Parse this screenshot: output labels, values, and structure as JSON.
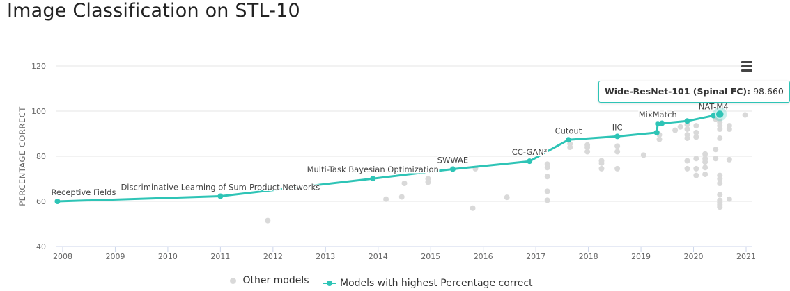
{
  "page": {
    "title": "Image Classification on STL-10"
  },
  "chart_data": {
    "type": "scatter",
    "ylabel": "PERCENTAGE CORRECT",
    "xlabel": "",
    "xlim": [
      2007.8,
      2021.1
    ],
    "ylim": [
      40,
      120
    ],
    "x_ticks": [
      "2008",
      "2009",
      "2010",
      "2011",
      "2012",
      "2013",
      "2014",
      "2015",
      "2016",
      "2017",
      "2018",
      "2019",
      "2020",
      "2021"
    ],
    "y_ticks": [
      40,
      60,
      80,
      100,
      120
    ],
    "grid": "horizontal",
    "legend_placement": "bottom-center",
    "series": [
      {
        "name": "Other models",
        "color": "#d9d9d9",
        "points": [
          [
            2011.9,
            51.5
          ],
          [
            2014.15,
            61
          ],
          [
            2014.45,
            62
          ],
          [
            2014.5,
            68
          ],
          [
            2014.95,
            68.5
          ],
          [
            2014.95,
            70
          ],
          [
            2015.8,
            57
          ],
          [
            2015.85,
            74.5
          ],
          [
            2016.45,
            61.8
          ],
          [
            2017.22,
            60.5
          ],
          [
            2017.22,
            64.5
          ],
          [
            2017.22,
            71
          ],
          [
            2017.22,
            75
          ],
          [
            2017.22,
            76.5
          ],
          [
            2017.65,
            84
          ],
          [
            2017.65,
            85.5
          ],
          [
            2017.98,
            82
          ],
          [
            2017.98,
            84
          ],
          [
            2017.98,
            85
          ],
          [
            2018.25,
            74.5
          ],
          [
            2018.25,
            77
          ],
          [
            2018.25,
            78
          ],
          [
            2018.55,
            74.5
          ],
          [
            2018.55,
            82
          ],
          [
            2018.55,
            84.5
          ],
          [
            2019.05,
            80.5
          ],
          [
            2019.35,
            87.5
          ],
          [
            2019.35,
            89.5
          ],
          [
            2019.65,
            91.5
          ],
          [
            2019.75,
            93
          ],
          [
            2019.88,
            74.5
          ],
          [
            2019.88,
            78
          ],
          [
            2019.88,
            88
          ],
          [
            2019.88,
            89.5
          ],
          [
            2019.88,
            92
          ],
          [
            2019.88,
            94
          ],
          [
            2020.05,
            71.5
          ],
          [
            2020.05,
            74.5
          ],
          [
            2020.05,
            79
          ],
          [
            2020.05,
            88.5
          ],
          [
            2020.05,
            90.5
          ],
          [
            2020.05,
            93.5
          ],
          [
            2020.22,
            72
          ],
          [
            2020.22,
            75
          ],
          [
            2020.22,
            77.5
          ],
          [
            2020.22,
            79
          ],
          [
            2020.22,
            81
          ],
          [
            2020.42,
            79
          ],
          [
            2020.42,
            83
          ],
          [
            2020.42,
            96.5
          ],
          [
            2020.5,
            57.5
          ],
          [
            2020.5,
            58.5
          ],
          [
            2020.5,
            59.5
          ],
          [
            2020.5,
            60.5
          ],
          [
            2020.5,
            63
          ],
          [
            2020.5,
            68
          ],
          [
            2020.5,
            70
          ],
          [
            2020.5,
            71.5
          ],
          [
            2020.5,
            88
          ],
          [
            2020.5,
            92
          ],
          [
            2020.5,
            93.5
          ],
          [
            2020.5,
            95
          ],
          [
            2020.5,
            97
          ],
          [
            2020.5,
            98
          ],
          [
            2020.68,
            61
          ],
          [
            2020.68,
            78.5
          ],
          [
            2020.68,
            92
          ],
          [
            2020.68,
            93.5
          ],
          [
            2020.98,
            98.3
          ]
        ]
      },
      {
        "name": "Models with highest Percentage correct",
        "color": "#2ec4b6",
        "points": [
          {
            "x": 2007.9,
            "y": 60.0,
            "label": "Receptive Fields"
          },
          {
            "x": 2011.0,
            "y": 62.3,
            "label": "Discriminative Learning of Sum-Product Networks"
          },
          {
            "x": 2013.9,
            "y": 70.1,
            "label": "Multi-Task Bayesian Optimization"
          },
          {
            "x": 2015.42,
            "y": 74.3,
            "label": "SWWAE"
          },
          {
            "x": 2016.88,
            "y": 77.8,
            "label": "CC-GAN²"
          },
          {
            "x": 2017.62,
            "y": 87.3,
            "label": "Cutout"
          },
          {
            "x": 2018.55,
            "y": 88.8,
            "label": "IIC"
          },
          {
            "x": 2019.3,
            "y": 90.5,
            "label": ""
          },
          {
            "x": 2019.32,
            "y": 94.4,
            "label": "MixMatch"
          },
          {
            "x": 2019.4,
            "y": 94.6,
            "label": ""
          },
          {
            "x": 2019.88,
            "y": 95.6,
            "label": ""
          },
          {
            "x": 2020.38,
            "y": 98.0,
            "label": "NAT-M4"
          },
          {
            "x": 2020.5,
            "y": 98.66,
            "label": ""
          }
        ]
      }
    ],
    "tooltip": {
      "model": "Wide-ResNet-101 (Spinal FC)",
      "separator": ":",
      "value": "98.660"
    }
  }
}
